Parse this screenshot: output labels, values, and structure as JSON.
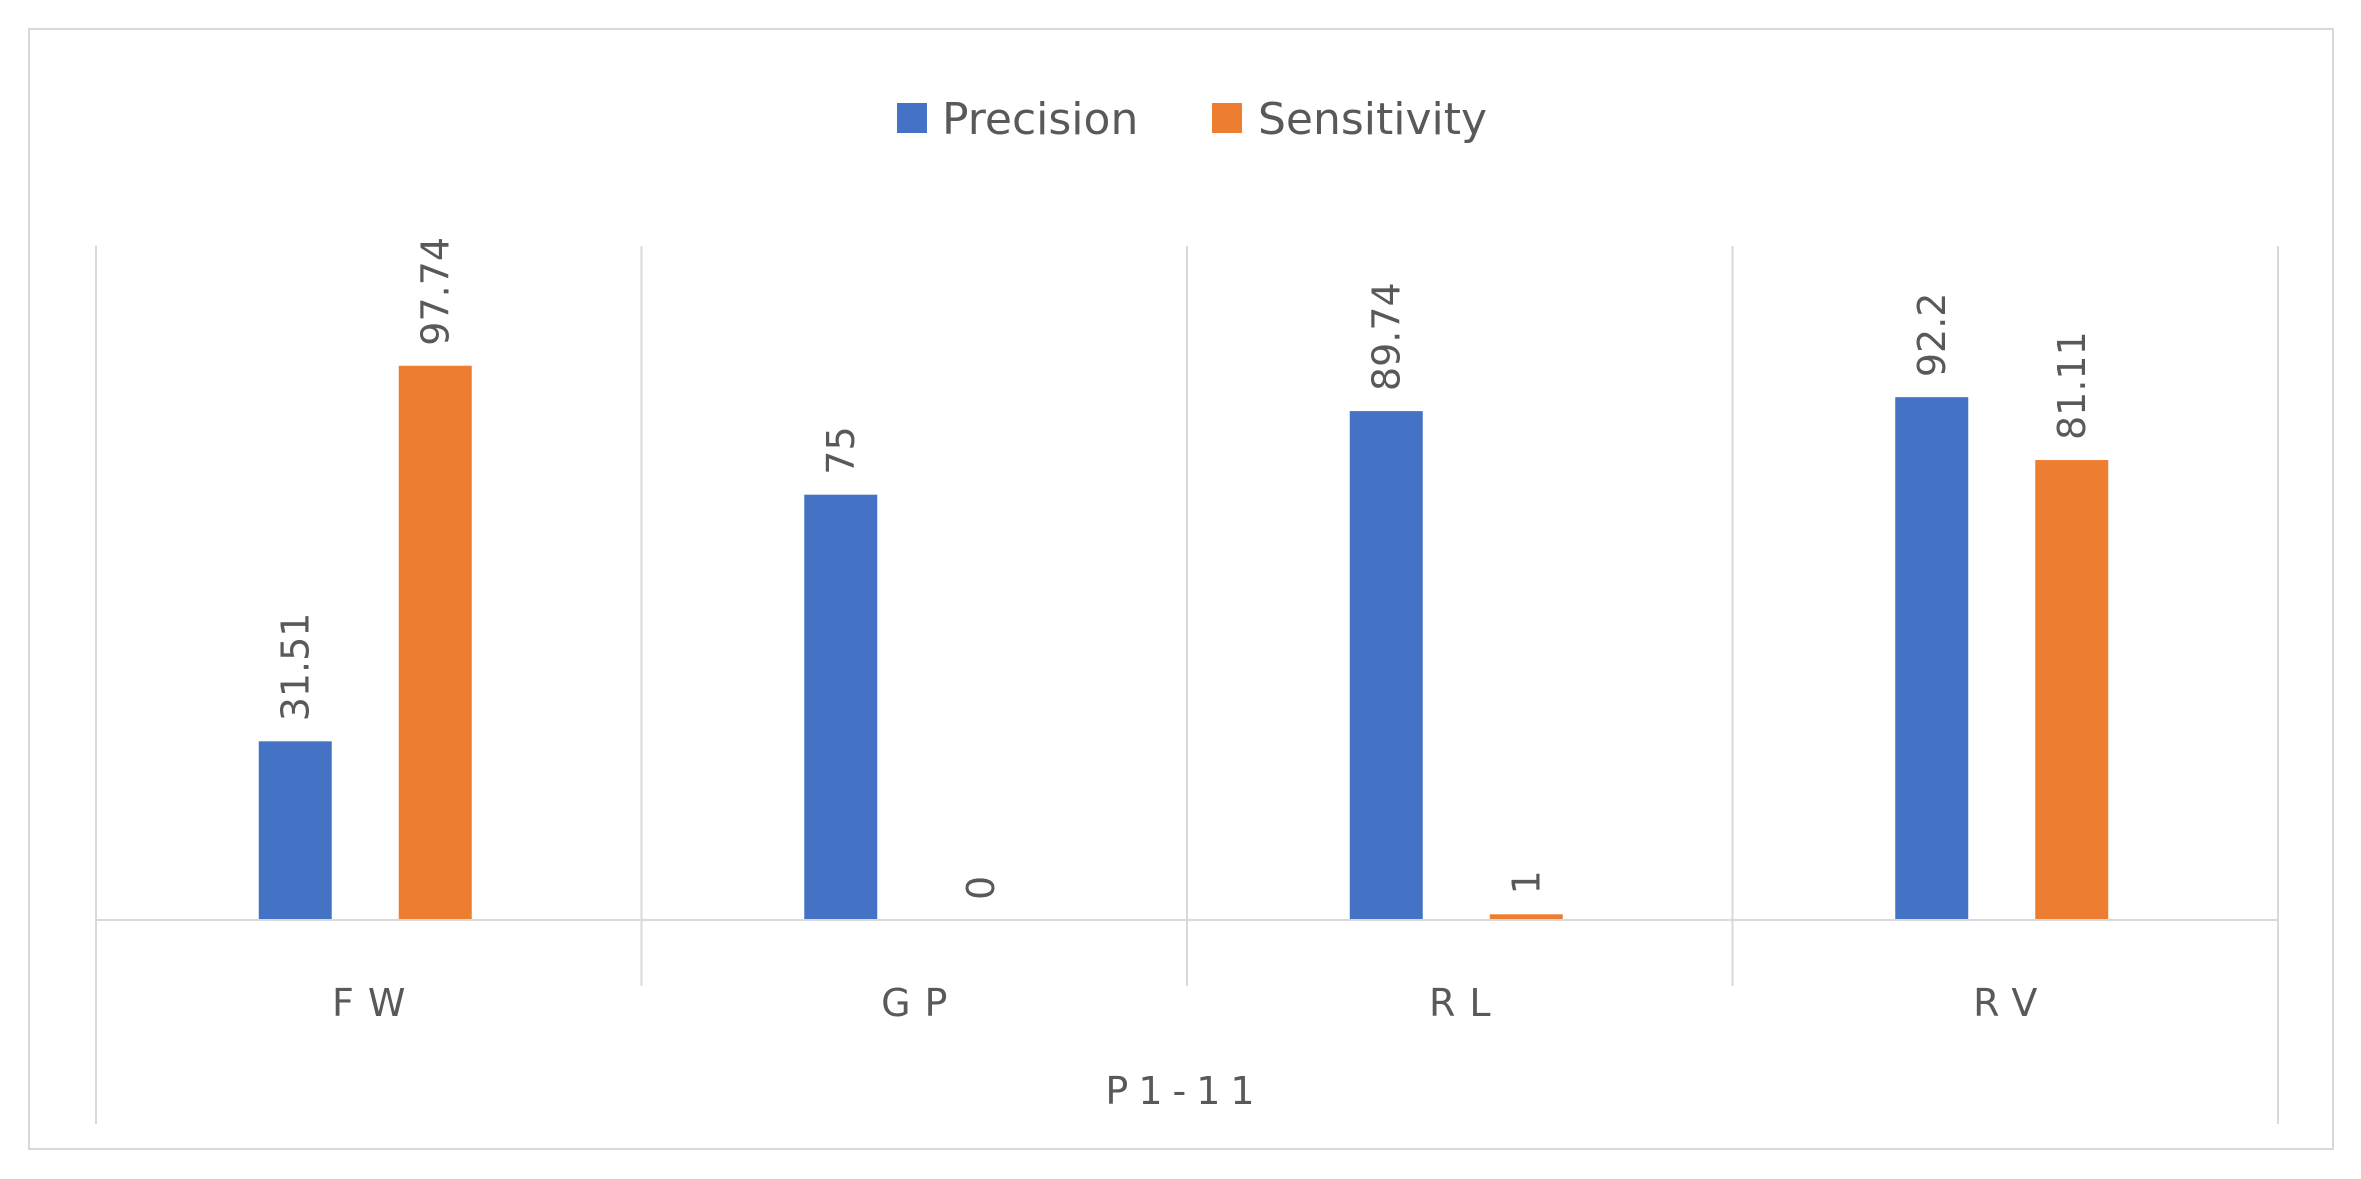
{
  "chart_data": {
    "type": "bar",
    "categories": [
      "FW",
      "GP",
      "RL",
      "RV"
    ],
    "group_label": "P1-11",
    "series": [
      {
        "name": "Precision",
        "color": "#4472C4",
        "values": [
          31.51,
          75,
          89.74,
          92.2
        ]
      },
      {
        "name": "Sensitivity",
        "color": "#ED7D31",
        "values": [
          97.74,
          0,
          1,
          81.11
        ]
      }
    ],
    "data_labels": [
      [
        "31.51",
        "75",
        "89.74",
        "92.2"
      ],
      [
        "97.74",
        "0",
        "1",
        "81.11"
      ]
    ],
    "ylim": [
      0,
      120
    ],
    "legend_position": "top-center",
    "grid": false
  }
}
